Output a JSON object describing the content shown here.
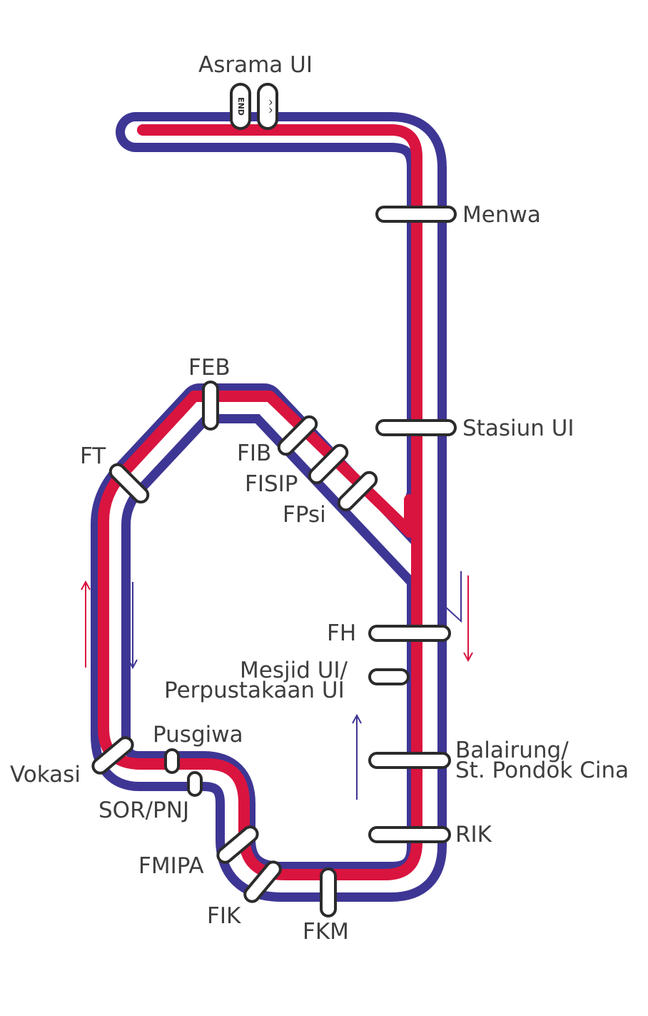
{
  "colors": {
    "red_line": "#d9143f",
    "blue_line": "#3e3694",
    "separator": "#ffffff",
    "label_text": "#3e3e3e",
    "stop_outline": "#2b2b2b"
  },
  "terminus": {
    "name": "Asrama UI",
    "end_badge": "END",
    "direction_badge": "^^"
  },
  "stations": [
    {
      "id": "menwa",
      "label": "Menwa"
    },
    {
      "id": "stasiun-ui",
      "label": "Stasiun UI"
    },
    {
      "id": "feb",
      "label": "FEB"
    },
    {
      "id": "fib",
      "label": "FIB"
    },
    {
      "id": "fisip",
      "label": "FISIP"
    },
    {
      "id": "fpsi",
      "label": "FPsi"
    },
    {
      "id": "ft",
      "label": "FT"
    },
    {
      "id": "fh",
      "label": "FH"
    },
    {
      "id": "mesjid",
      "label": "Mesjid UI/",
      "label2": "Perpustakaan UI"
    },
    {
      "id": "balairung",
      "label": "Balairung/",
      "label2": "St. Pondok Cina"
    },
    {
      "id": "rik",
      "label": "RIK"
    },
    {
      "id": "vokasi",
      "label": "Vokasi"
    },
    {
      "id": "pusgiwa",
      "label": "Pusgiwa"
    },
    {
      "id": "sor-pnj",
      "label": "SOR/PNJ"
    },
    {
      "id": "fmipa",
      "label": "FMIPA"
    },
    {
      "id": "fik",
      "label": "FIK"
    },
    {
      "id": "fkm",
      "label": "FKM"
    }
  ]
}
